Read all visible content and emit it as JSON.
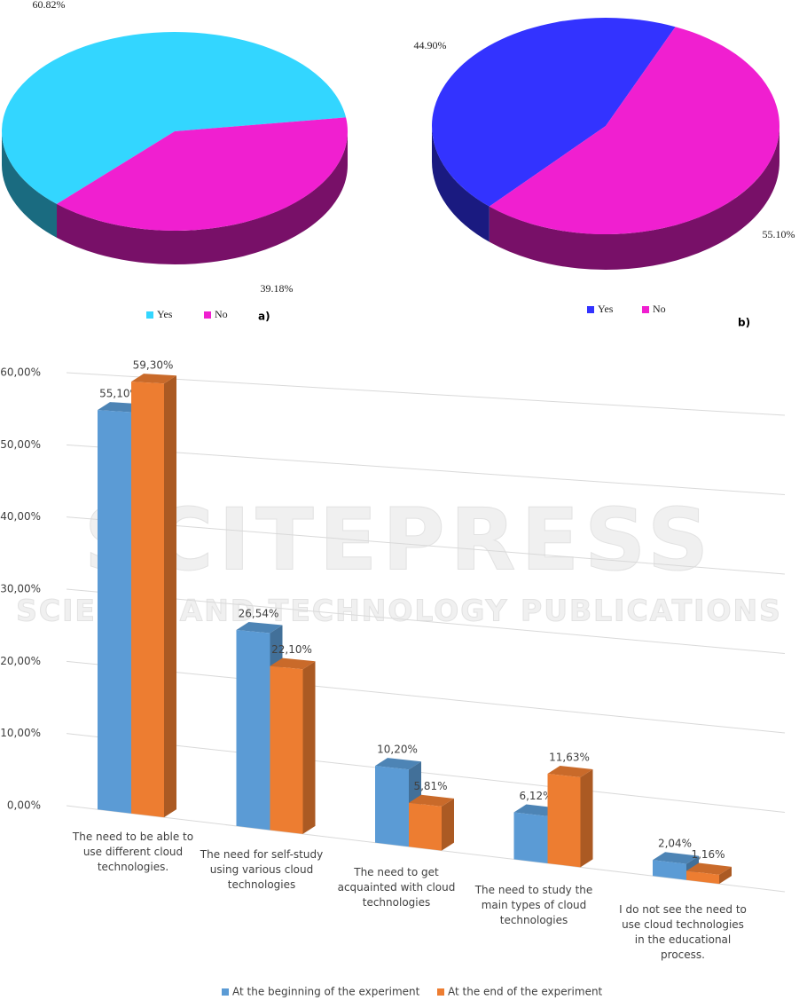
{
  "watermark": {
    "title": "SCITEPRESS",
    "subtitle": "SCIENCE AND TECHNOLOGY PUBLICATIONS"
  },
  "chart_data": [
    {
      "type": "pie",
      "label": "a)",
      "categories": [
        "Yes",
        "No"
      ],
      "values": [
        60.82,
        39.18
      ],
      "value_labels": [
        "60.82%",
        "39.18%"
      ],
      "colors": [
        "#33d6ff",
        "#f01fd0"
      ]
    },
    {
      "type": "pie",
      "label": "b)",
      "categories": [
        "Yes",
        "No"
      ],
      "values": [
        44.9,
        55.1
      ],
      "value_labels": [
        "44.90%",
        "55.10%"
      ],
      "colors": [
        "#3333ff",
        "#f01fd0"
      ]
    },
    {
      "type": "bar",
      "categories": [
        "The need to be able to use different cloud technologies.",
        "The need for self-study using various cloud technologies",
        "The need to get acquainted with cloud technologies",
        "The need to study the main types of cloud technologies",
        "I do not see the need to use cloud technologies in the educational process."
      ],
      "series": [
        {
          "name": "At the beginning of the experiment",
          "color": "#5b9bd5",
          "values": [
            55.1,
            26.54,
            10.2,
            6.12,
            2.04
          ],
          "value_labels": [
            "55,10%",
            "26,54%",
            "10,20%",
            "6,12%",
            "2,04%"
          ]
        },
        {
          "name": "At the end of the experiment",
          "color": "#ed7d31",
          "values": [
            59.3,
            22.1,
            5.81,
            11.63,
            1.16
          ],
          "value_labels": [
            "59,30%",
            "22,10%",
            "5,81%",
            "11,63%",
            "1,16%"
          ]
        }
      ],
      "ylim": [
        0,
        60
      ],
      "yticks": [
        {
          "value": 0,
          "label": "0,00%"
        },
        {
          "value": 10,
          "label": "10,00%"
        },
        {
          "value": 20,
          "label": "20,00%"
        },
        {
          "value": 30,
          "label": "30,00%"
        },
        {
          "value": 40,
          "label": "40,00%"
        },
        {
          "value": 50,
          "label": "50,00%"
        },
        {
          "value": 60,
          "label": "60,00%"
        }
      ],
      "grid": true
    }
  ]
}
